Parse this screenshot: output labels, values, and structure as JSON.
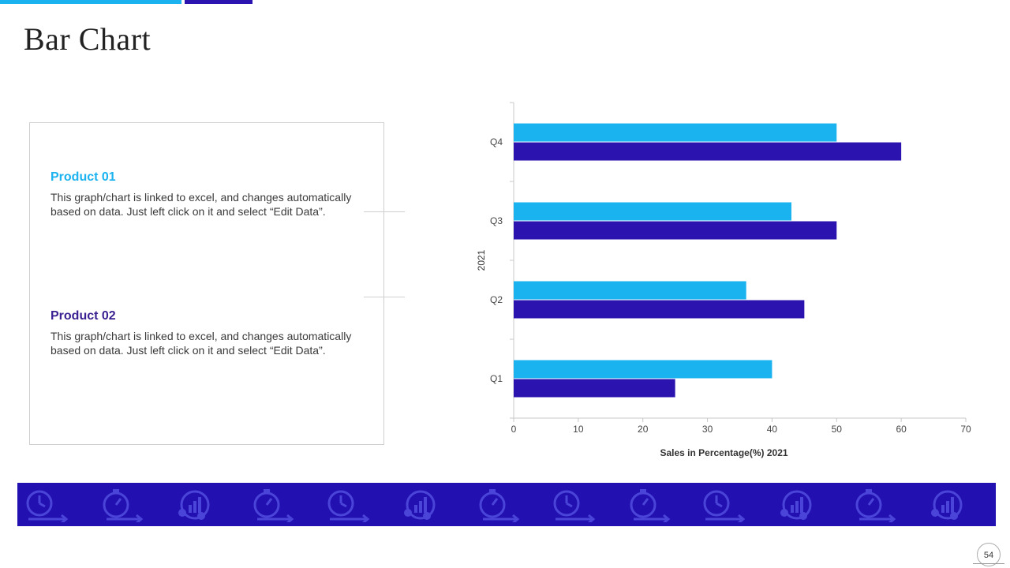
{
  "slide": {
    "title": "Bar Chart",
    "page_number": "54",
    "colors": {
      "accent_light": "#1ab2ef",
      "accent_dark": "#2a13ae",
      "banner": "#2310b0"
    }
  },
  "products": [
    {
      "title": "Product 01",
      "title_color": "#1ab2ef",
      "description": "This graph/chart is linked to excel, and changes automatically based on data. Just left click on it and select “Edit Data”."
    },
    {
      "title": "Product 02",
      "title_color": "#3a2090",
      "description": "This graph/chart is linked to excel, and changes automatically based on data. Just left click on it and select “Edit Data”."
    }
  ],
  "banner": {
    "icons": [
      "timer-icon",
      "stopwatch-icon",
      "growth-chart-icon",
      "stopwatch-icon",
      "timer-icon",
      "growth-chart-icon",
      "stopwatch-icon",
      "timer-icon",
      "stopwatch-icon",
      "timer-icon",
      "growth-chart-icon",
      "stopwatch-icon",
      "growth-chart-icon"
    ]
  },
  "chart_data": {
    "type": "bar",
    "orientation": "horizontal",
    "categories": [
      "Q1",
      "Q2",
      "Q3",
      "Q4"
    ],
    "series": [
      {
        "name": "Product 01",
        "color": "#1ab2ef",
        "values": [
          40,
          36,
          43,
          50
        ]
      },
      {
        "name": "Product 02",
        "color": "#2a13ae",
        "values": [
          25,
          45,
          50,
          60
        ]
      }
    ],
    "xlabel": "Sales in Percentage(%) 2021",
    "ylabel": "2021",
    "xlim": [
      0,
      70
    ],
    "xticks": [
      0,
      10,
      20,
      30,
      40,
      50,
      60,
      70
    ],
    "grid": false,
    "legend": "none"
  }
}
